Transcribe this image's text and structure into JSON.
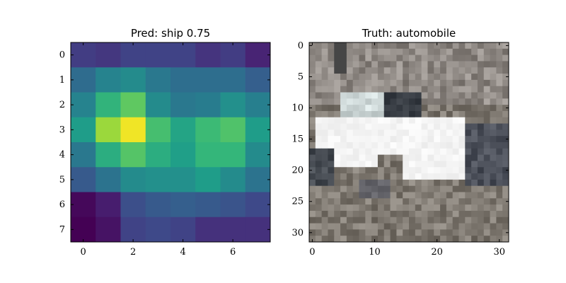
{
  "chart_data": [
    {
      "type": "heatmap",
      "title": "Pred: ship 0.75",
      "colormap": "viridis",
      "xlim": [
        -0.5,
        7.5
      ],
      "ylim": [
        7.5,
        -0.5
      ],
      "xticks": [
        0,
        2,
        4,
        6
      ],
      "yticks": [
        0,
        1,
        2,
        3,
        4,
        5,
        6,
        7
      ],
      "values": [
        [
          0.18,
          0.16,
          0.2,
          0.2,
          0.2,
          0.15,
          0.18,
          0.1
        ],
        [
          0.35,
          0.45,
          0.48,
          0.4,
          0.36,
          0.36,
          0.36,
          0.3
        ],
        [
          0.45,
          0.65,
          0.75,
          0.48,
          0.4,
          0.42,
          0.5,
          0.43
        ],
        [
          0.55,
          0.85,
          0.98,
          0.7,
          0.58,
          0.68,
          0.72,
          0.55
        ],
        [
          0.4,
          0.62,
          0.73,
          0.62,
          0.56,
          0.66,
          0.66,
          0.48
        ],
        [
          0.28,
          0.38,
          0.48,
          0.5,
          0.5,
          0.55,
          0.48,
          0.38
        ],
        [
          0.02,
          0.08,
          0.24,
          0.28,
          0.3,
          0.28,
          0.26,
          0.22
        ],
        [
          0.0,
          0.05,
          0.2,
          0.22,
          0.2,
          0.14,
          0.14,
          0.14
        ]
      ]
    },
    {
      "type": "heatmap",
      "title": "Truth: automobile",
      "colormap": "rgb-image",
      "xlim": [
        -0.5,
        31.5
      ],
      "ylim": [
        31.5,
        -0.5
      ],
      "xticks": [
        0,
        10,
        20,
        30
      ],
      "yticks": [
        0,
        5,
        10,
        15,
        20,
        25,
        30
      ]
    }
  ]
}
